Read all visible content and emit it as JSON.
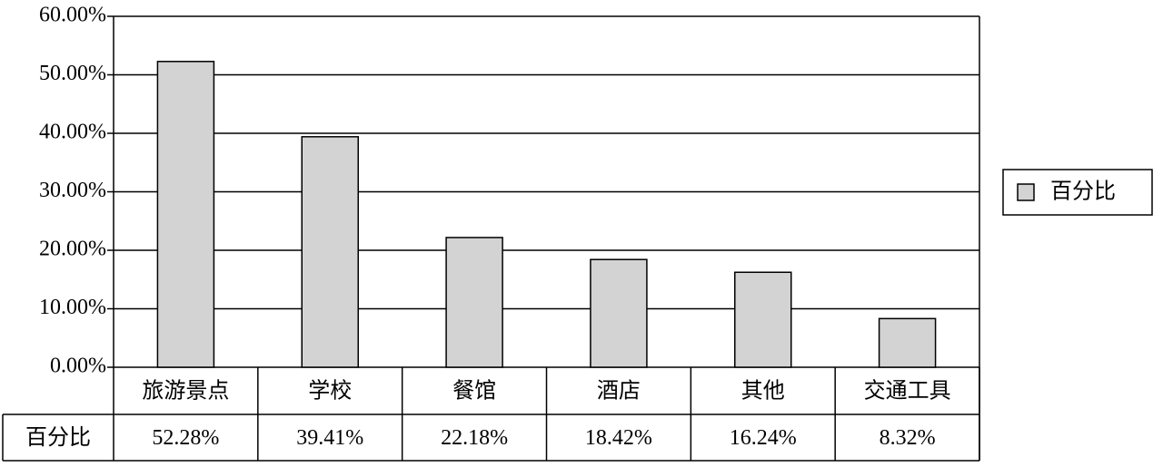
{
  "chart_data": {
    "type": "bar",
    "categories": [
      "旅游景点",
      "学校",
      "餐馆",
      "酒店",
      "其他",
      "交通工具"
    ],
    "series": [
      {
        "name": "百分比",
        "color": "#d3d3d3",
        "values": [
          52.28,
          39.41,
          22.18,
          18.42,
          16.24,
          8.32
        ],
        "value_labels": [
          "52.28%",
          "39.41%",
          "22.18%",
          "18.42%",
          "16.24%",
          "8.32%"
        ]
      }
    ],
    "ylim": [
      0,
      60
    ],
    "yticks": [
      {
        "value": 0,
        "label": "0.00%"
      },
      {
        "value": 10,
        "label": "10.00%"
      },
      {
        "value": 20,
        "label": "20.00%"
      },
      {
        "value": 30,
        "label": "30.00%"
      },
      {
        "value": 40,
        "label": "40.00%"
      },
      {
        "value": 50,
        "label": "50.00%"
      },
      {
        "value": 60,
        "label": "60.00%"
      }
    ],
    "grid": true,
    "legend": "right",
    "data_table": true
  }
}
